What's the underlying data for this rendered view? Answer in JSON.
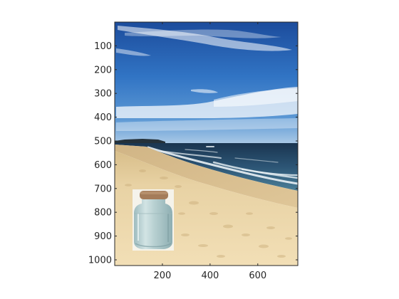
{
  "figure": {
    "image_content": "beach scene with blue sky, sea waves, sand and a corked glass jar",
    "y_ticks": [
      100,
      200,
      300,
      400,
      500,
      600,
      700,
      800,
      900,
      1000
    ],
    "x_ticks": [
      200,
      400,
      600
    ],
    "x_range": [
      0,
      768
    ],
    "y_range": [
      0,
      1024
    ],
    "colors": {
      "axes_line": "#262626",
      "sky_top": "#1c4c9c",
      "sky_mid": "#3a78c8",
      "sky_horizon": "#a8c8e6",
      "sea_dark": "#1e3b55",
      "sea_mid": "#3a6b8c",
      "foam": "#e8f0f4",
      "sand_light": "#f0ddb2",
      "sand_dark": "#d2b47e",
      "jar_glass": "#bcd3d4",
      "cork": "#a07a58"
    }
  }
}
